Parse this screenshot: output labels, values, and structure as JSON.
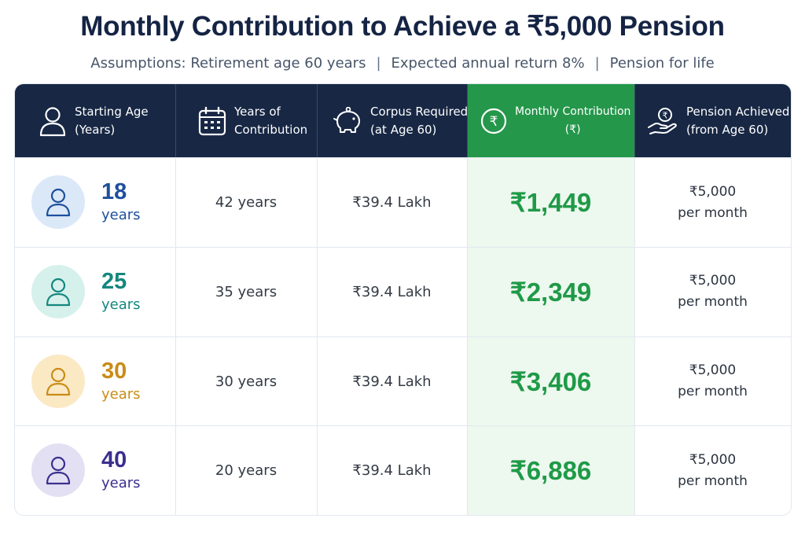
{
  "title": "Monthly Contribution to Achieve a ₹5,000 Pension",
  "assumptions": [
    "Assumptions: Retirement age 60 years",
    "Expected annual return 8%",
    "Pension for life"
  ],
  "separator": "|",
  "columns": [
    {
      "line1": "Starting Age",
      "line2": "(Years)",
      "icon": "person-icon"
    },
    {
      "line1": "Years of",
      "line2": "Contribution",
      "icon": "calendar-icon"
    },
    {
      "line1": "Corpus Required",
      "line2": "(at Age 60)",
      "icon": "piggy-bank-icon"
    },
    {
      "line1": "Monthly Contribution",
      "line2": "(₹)",
      "icon": "rupee-coin-icon"
    },
    {
      "line1": "Pension Achieved",
      "line2": "(from Age 60)",
      "icon": "hand-coin-icon"
    }
  ],
  "rows": [
    {
      "age": "18",
      "age_unit": "years",
      "years": "42 years",
      "corpus": "₹39.4 Lakh",
      "contribution": "₹1,449",
      "pension_amount": "₹5,000",
      "pension_period": "per month",
      "accent": "#1e4f9c",
      "avatar_bg": "#dbe8f8"
    },
    {
      "age": "25",
      "age_unit": "years",
      "years": "35 years",
      "corpus": "₹39.4 Lakh",
      "contribution": "₹2,349",
      "pension_amount": "₹5,000",
      "pension_period": "per month",
      "accent": "#14877e",
      "avatar_bg": "#d6f1ec"
    },
    {
      "age": "30",
      "age_unit": "years",
      "years": "30 years",
      "corpus": "₹39.4 Lakh",
      "contribution": "₹3,406",
      "pension_amount": "₹5,000",
      "pension_period": "per month",
      "accent": "#c98c17",
      "avatar_bg": "#fbe9c4"
    },
    {
      "age": "40",
      "age_unit": "years",
      "years": "20 years",
      "corpus": "₹39.4 Lakh",
      "contribution": "₹6,886",
      "pension_amount": "₹5,000",
      "pension_period": "per month",
      "accent": "#3b2f8f",
      "avatar_bg": "#e3e0f3"
    }
  ],
  "colors": {
    "header_bg": "#172744",
    "highlight_header": "#25974b",
    "highlight_body": "#edf8ef",
    "contribution_text": "#1f9a47"
  }
}
